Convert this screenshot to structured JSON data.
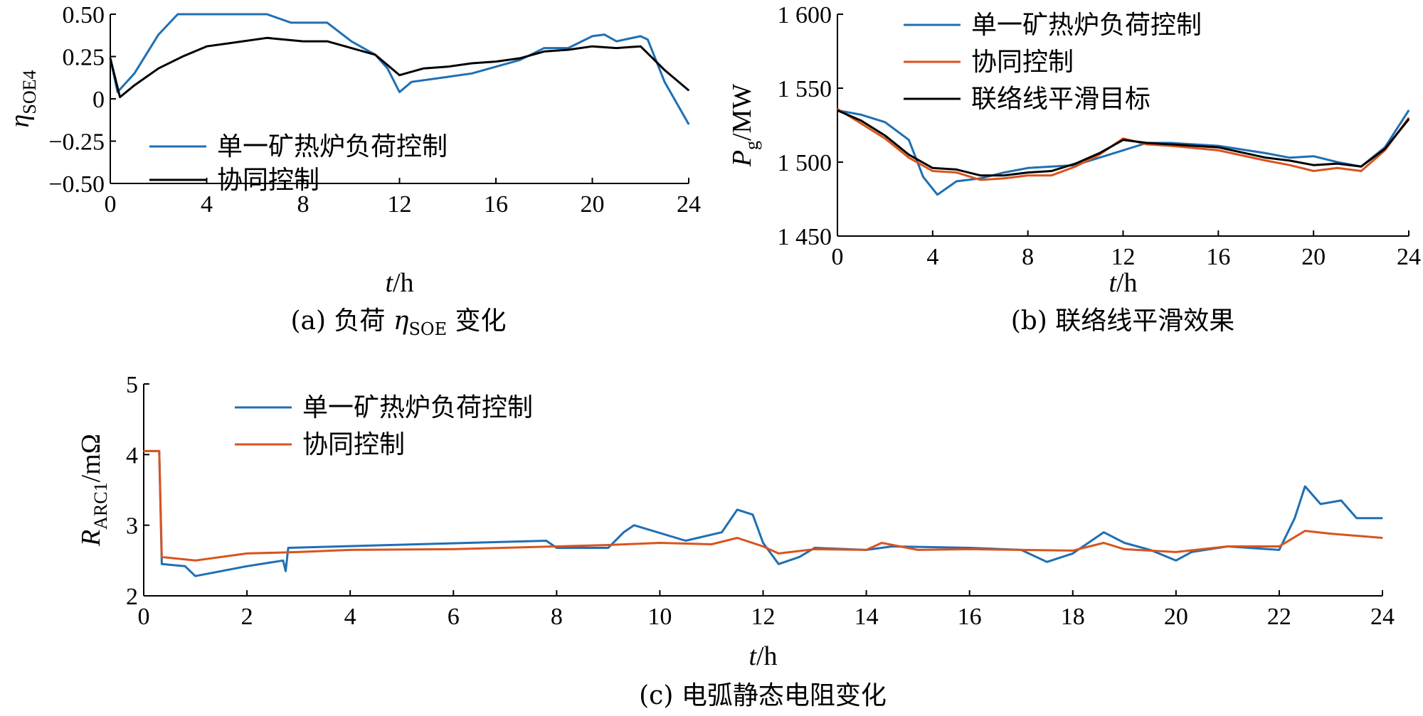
{
  "colors": {
    "single": "#1f6fb3",
    "coop": "#d9531e",
    "target": "#000000"
  },
  "chart_data": [
    {
      "type": "line",
      "caption": {
        "prefix": "(a)  负荷 ",
        "sym": "η",
        "sub": "SOE",
        "suffix": " 变化"
      },
      "ylabel": {
        "sym": "η",
        "sub": "SOE4"
      },
      "xlabel": {
        "sym": "t",
        "unit": "/h"
      },
      "xlim": [
        0,
        24
      ],
      "ylim": [
        -0.5,
        0.5
      ],
      "xticks": [
        0,
        4,
        8,
        12,
        16,
        20,
        24
      ],
      "xtick_labels": [
        "0",
        "4",
        "8",
        "12",
        "16",
        "20",
        "24"
      ],
      "yticks": [
        -0.5,
        -0.25,
        0,
        0.25,
        0.5
      ],
      "ytick_labels": [
        "−0.50",
        "−0.25",
        "0",
        "0.25",
        "0.50"
      ],
      "legend": [
        "单一矿热炉负荷控制",
        "协同控制"
      ],
      "series": [
        {
          "name": "单一矿热炉负荷控制",
          "color": "single",
          "points": [
            [
              0,
              0.24
            ],
            [
              0.3,
              0.04
            ],
            [
              1,
              0.15
            ],
            [
              2,
              0.38
            ],
            [
              2.8,
              0.5
            ],
            [
              6.5,
              0.5
            ],
            [
              7.5,
              0.45
            ],
            [
              9,
              0.45
            ],
            [
              10,
              0.34
            ],
            [
              11,
              0.26
            ],
            [
              11.5,
              0.18
            ],
            [
              12,
              0.04
            ],
            [
              12.5,
              0.1
            ],
            [
              14,
              0.13
            ],
            [
              15,
              0.15
            ],
            [
              16,
              0.19
            ],
            [
              17,
              0.23
            ],
            [
              18,
              0.3
            ],
            [
              19,
              0.3
            ],
            [
              20,
              0.37
            ],
            [
              20.5,
              0.38
            ],
            [
              21,
              0.34
            ],
            [
              22,
              0.37
            ],
            [
              22.3,
              0.35
            ],
            [
              23,
              0.1
            ],
            [
              24,
              -0.15
            ]
          ]
        },
        {
          "name": "协同控制",
          "color": "target",
          "points": [
            [
              0,
              0.24
            ],
            [
              0.4,
              0.01
            ],
            [
              1,
              0.08
            ],
            [
              2,
              0.18
            ],
            [
              3,
              0.25
            ],
            [
              4,
              0.31
            ],
            [
              5,
              0.33
            ],
            [
              6.5,
              0.36
            ],
            [
              8,
              0.34
            ],
            [
              9,
              0.34
            ],
            [
              10,
              0.3
            ],
            [
              11,
              0.26
            ],
            [
              12,
              0.14
            ],
            [
              13,
              0.18
            ],
            [
              14,
              0.19
            ],
            [
              15,
              0.21
            ],
            [
              16,
              0.22
            ],
            [
              17,
              0.24
            ],
            [
              18,
              0.28
            ],
            [
              19,
              0.29
            ],
            [
              20,
              0.31
            ],
            [
              21,
              0.3
            ],
            [
              22,
              0.31
            ],
            [
              23,
              0.17
            ],
            [
              24,
              0.05
            ]
          ]
        }
      ]
    },
    {
      "type": "line",
      "caption": {
        "text": "(b)  联络线平滑效果"
      },
      "ylabel": {
        "sym": "P",
        "sub": "g",
        "unit": "/MW"
      },
      "xlabel": {
        "sym": "t",
        "unit": "/h"
      },
      "xlim": [
        0,
        24
      ],
      "ylim": [
        1450,
        1600
      ],
      "xticks": [
        0,
        4,
        8,
        12,
        16,
        20,
        24
      ],
      "xtick_labels": [
        "0",
        "4",
        "8",
        "12",
        "16",
        "20",
        "24"
      ],
      "yticks": [
        1450,
        1500,
        1550,
        1600
      ],
      "ytick_labels": [
        "1 450",
        "1 500",
        "1 550",
        "1 600"
      ],
      "legend": [
        "单一矿热炉负荷控制",
        "协同控制",
        "联络线平滑目标"
      ],
      "series": [
        {
          "name": "单一矿热炉负荷控制",
          "color": "single",
          "points": [
            [
              0,
              1535
            ],
            [
              1,
              1532
            ],
            [
              2,
              1527
            ],
            [
              3,
              1515
            ],
            [
              3.6,
              1490
            ],
            [
              4.2,
              1478
            ],
            [
              5,
              1487
            ],
            [
              6,
              1489
            ],
            [
              7,
              1493
            ],
            [
              8,
              1496
            ],
            [
              9,
              1497
            ],
            [
              10,
              1498
            ],
            [
              11,
              1503
            ],
            [
              12,
              1508
            ],
            [
              13,
              1513
            ],
            [
              14,
              1513
            ],
            [
              16,
              1511
            ],
            [
              18,
              1506
            ],
            [
              19,
              1503
            ],
            [
              20,
              1504
            ],
            [
              21,
              1500
            ],
            [
              22,
              1497
            ],
            [
              23,
              1510
            ],
            [
              24,
              1535
            ]
          ]
        },
        {
          "name": "协同控制",
          "color": "coop",
          "points": [
            [
              0,
              1536
            ],
            [
              1,
              1526
            ],
            [
              2,
              1516
            ],
            [
              3,
              1503
            ],
            [
              4,
              1494
            ],
            [
              5,
              1493
            ],
            [
              6,
              1488
            ],
            [
              7,
              1489
            ],
            [
              8,
              1491
            ],
            [
              9,
              1491
            ],
            [
              10,
              1497
            ],
            [
              11,
              1505
            ],
            [
              12,
              1516
            ],
            [
              13,
              1512
            ],
            [
              14,
              1511
            ],
            [
              16,
              1508
            ],
            [
              18,
              1501
            ],
            [
              19,
              1498
            ],
            [
              20,
              1494
            ],
            [
              21,
              1496
            ],
            [
              22,
              1494
            ],
            [
              23,
              1508
            ],
            [
              24,
              1530
            ]
          ]
        },
        {
          "name": "联络线平滑目标",
          "color": "target",
          "points": [
            [
              0,
              1535
            ],
            [
              1,
              1528
            ],
            [
              2,
              1518
            ],
            [
              3,
              1505
            ],
            [
              4,
              1496
            ],
            [
              5,
              1495
            ],
            [
              6,
              1491
            ],
            [
              7,
              1491
            ],
            [
              8,
              1493
            ],
            [
              9,
              1494
            ],
            [
              10,
              1499
            ],
            [
              11,
              1506
            ],
            [
              12,
              1515
            ],
            [
              13,
              1513
            ],
            [
              14,
              1512
            ],
            [
              16,
              1510
            ],
            [
              18,
              1503
            ],
            [
              19,
              1501
            ],
            [
              20,
              1498
            ],
            [
              21,
              1499
            ],
            [
              22,
              1497
            ],
            [
              23,
              1509
            ],
            [
              24,
              1529
            ]
          ]
        }
      ]
    },
    {
      "type": "line",
      "caption": {
        "text": "(c)  电弧静态电阻变化"
      },
      "ylabel": {
        "sym": "R",
        "sub": "ARC1",
        "unit": "/mΩ"
      },
      "xlabel": {
        "sym": "t",
        "unit": "/h"
      },
      "xlim": [
        0,
        24
      ],
      "ylim": [
        2,
        5
      ],
      "xticks": [
        0,
        2,
        4,
        6,
        8,
        10,
        12,
        14,
        16,
        18,
        20,
        22,
        24
      ],
      "xtick_labels": [
        "0",
        "2",
        "4",
        "6",
        "8",
        "10",
        "12",
        "14",
        "16",
        "18",
        "20",
        "22",
        "24"
      ],
      "yticks": [
        2,
        3,
        4,
        5
      ],
      "ytick_labels": [
        "2",
        "3",
        "4",
        "5"
      ],
      "legend": [
        "单一矿热炉负荷控制",
        "协同控制"
      ],
      "series": [
        {
          "name": "单一矿热炉负荷控制",
          "color": "single",
          "points": [
            [
              0,
              4.05
            ],
            [
              0.3,
              4.05
            ],
            [
              0.35,
              2.45
            ],
            [
              0.8,
              2.42
            ],
            [
              1,
              2.28
            ],
            [
              2,
              2.42
            ],
            [
              2.7,
              2.5
            ],
            [
              2.75,
              2.35
            ],
            [
              2.8,
              2.68
            ],
            [
              7.8,
              2.78
            ],
            [
              8,
              2.68
            ],
            [
              9,
              2.68
            ],
            [
              9.3,
              2.9
            ],
            [
              9.5,
              3.0
            ],
            [
              10.5,
              2.78
            ],
            [
              11.2,
              2.9
            ],
            [
              11.5,
              3.22
            ],
            [
              11.8,
              3.15
            ],
            [
              12,
              2.75
            ],
            [
              12.3,
              2.45
            ],
            [
              12.7,
              2.55
            ],
            [
              13,
              2.68
            ],
            [
              14,
              2.65
            ],
            [
              14.5,
              2.7
            ],
            [
              16,
              2.68
            ],
            [
              17,
              2.65
            ],
            [
              17.5,
              2.48
            ],
            [
              18,
              2.6
            ],
            [
              18.6,
              2.9
            ],
            [
              19,
              2.75
            ],
            [
              19.5,
              2.65
            ],
            [
              20,
              2.5
            ],
            [
              20.3,
              2.62
            ],
            [
              21,
              2.7
            ],
            [
              22,
              2.65
            ],
            [
              22.3,
              3.1
            ],
            [
              22.5,
              3.55
            ],
            [
              22.8,
              3.3
            ],
            [
              23.2,
              3.35
            ],
            [
              23.5,
              3.1
            ],
            [
              24,
              3.1
            ]
          ]
        },
        {
          "name": "协同控制",
          "color": "coop",
          "points": [
            [
              0,
              4.05
            ],
            [
              0.3,
              4.05
            ],
            [
              0.35,
              2.55
            ],
            [
              1,
              2.5
            ],
            [
              2,
              2.6
            ],
            [
              3,
              2.62
            ],
            [
              4,
              2.65
            ],
            [
              6,
              2.66
            ],
            [
              8,
              2.7
            ],
            [
              9,
              2.72
            ],
            [
              10,
              2.75
            ],
            [
              11,
              2.73
            ],
            [
              11.5,
              2.82
            ],
            [
              12,
              2.7
            ],
            [
              12.3,
              2.6
            ],
            [
              13,
              2.66
            ],
            [
              14,
              2.65
            ],
            [
              14.3,
              2.75
            ],
            [
              15,
              2.65
            ],
            [
              16,
              2.66
            ],
            [
              18,
              2.64
            ],
            [
              18.6,
              2.75
            ],
            [
              19,
              2.66
            ],
            [
              20,
              2.62
            ],
            [
              21,
              2.7
            ],
            [
              22,
              2.7
            ],
            [
              22.5,
              2.92
            ],
            [
              23,
              2.88
            ],
            [
              24,
              2.82
            ]
          ]
        }
      ]
    }
  ]
}
